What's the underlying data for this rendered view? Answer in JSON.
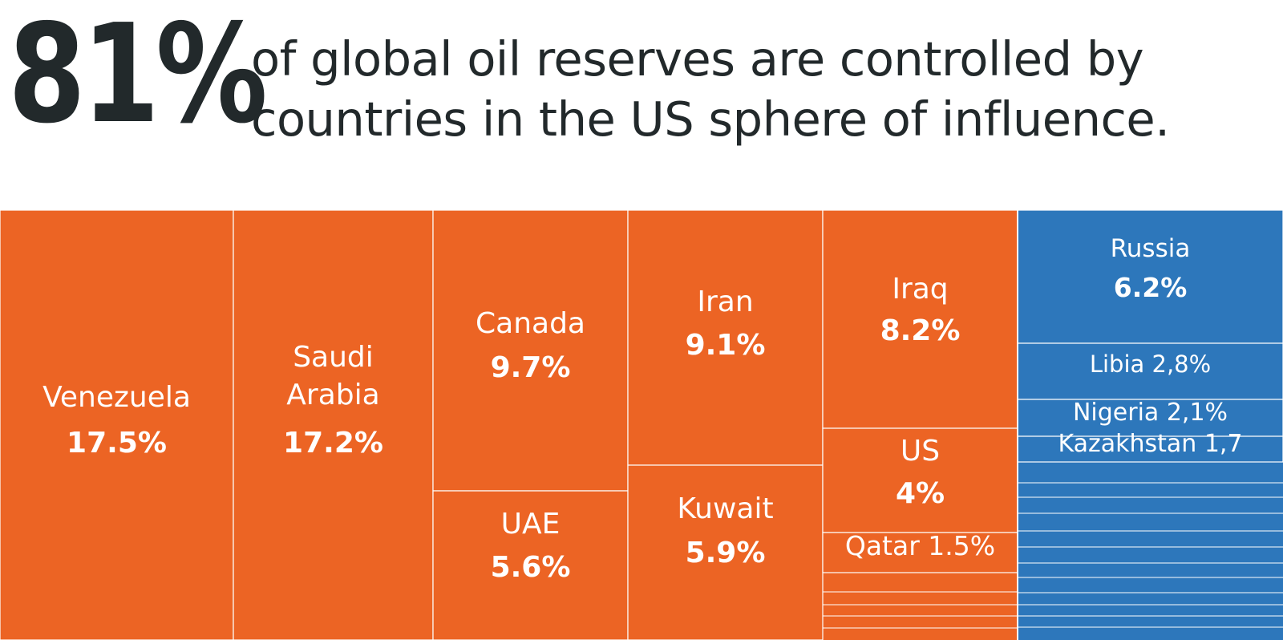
{
  "header": {
    "big_number": "81%",
    "headline_line1": "of global oil reserves are controlled by",
    "headline_line2": "countries in the US sphere of influence."
  },
  "colors": {
    "us_sphere": "#ec6424",
    "other": "#2d77bb",
    "divider": "#ffffff",
    "text_dark": "#22292b"
  },
  "chart_data": {
    "type": "treemap",
    "title": "",
    "groups": [
      {
        "group": "us_sphere",
        "items": [
          {
            "name": "Venezuela",
            "value": 17.5,
            "label": "17.5%"
          },
          {
            "name": "Saudi\nArabia",
            "value": 17.2,
            "label": "17.2%"
          },
          {
            "name": "Canada",
            "value": 9.7,
            "label": "9.7%"
          },
          {
            "name": "UAE",
            "value": 5.6,
            "label": "5.6%"
          },
          {
            "name": "Iran",
            "value": 9.1,
            "label": "9.1%"
          },
          {
            "name": "Kuwait",
            "value": 5.9,
            "label": "5.9%"
          },
          {
            "name": "Iraq",
            "value": 8.2,
            "label": "8.2%"
          },
          {
            "name": "US",
            "value": 4,
            "label": "4%"
          },
          {
            "name": "Qatar 1.5%",
            "value": 1.5,
            "label": ""
          }
        ]
      },
      {
        "group": "other",
        "items": [
          {
            "name": "Russia",
            "value": 6.2,
            "label": "6.2%"
          },
          {
            "name": "Libia 2,8%",
            "value": 2.8,
            "label": ""
          },
          {
            "name": "Nigeria 2,1%",
            "value": 2.1,
            "label": ""
          },
          {
            "name": "Kazakhstan 1,7",
            "value": 1.7,
            "label": ""
          }
        ]
      }
    ]
  }
}
